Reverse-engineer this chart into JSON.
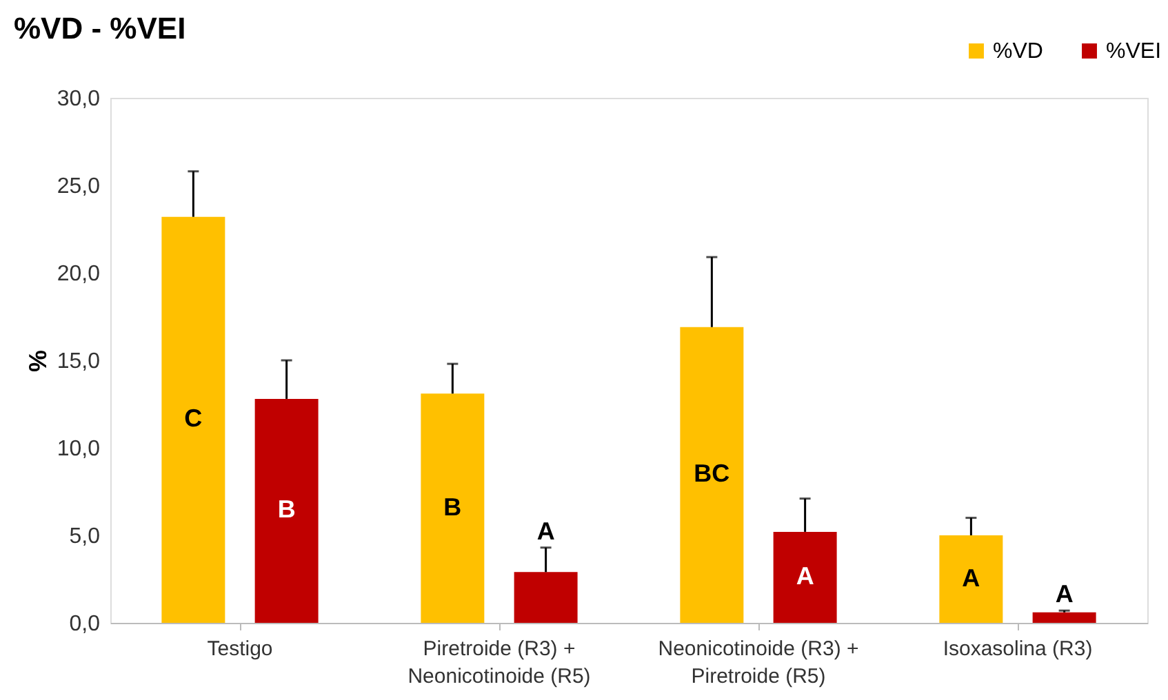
{
  "chart_data": {
    "type": "bar",
    "title": "%VD - %VEI",
    "ylabel": "%",
    "categories": [
      "Testigo",
      "Piretroide (R3) +\nNeonicotinoide (R5)",
      "Neonicotinoide (R3) +\nPiretroide (R5)",
      "Isoxasolina (R3)"
    ],
    "series": [
      {
        "name": "%VD",
        "color": "#ffc000",
        "values": [
          23.2,
          13.1,
          16.9,
          5.0
        ],
        "errors": [
          [
            23.2,
            25.8
          ],
          [
            13.1,
            14.8
          ],
          [
            16.9,
            20.9
          ],
          [
            5.0,
            6.0
          ]
        ],
        "value_labels": [
          "C",
          "B",
          "BC",
          "A"
        ]
      },
      {
        "name": "%VEI",
        "color": "#c00000",
        "values": [
          12.8,
          2.9,
          5.2,
          0.6
        ],
        "errors": [
          [
            12.8,
            15.0
          ],
          [
            2.9,
            4.3
          ],
          [
            5.2,
            7.1
          ],
          [
            0.6,
            0.7
          ]
        ],
        "value_labels": [
          "B",
          "A",
          "A",
          "A"
        ]
      }
    ],
    "ylim": [
      0,
      30
    ],
    "yticks": [
      {
        "value": 0,
        "label": "0,0"
      },
      {
        "value": 5,
        "label": "5,0"
      },
      {
        "value": 10,
        "label": "10,0"
      },
      {
        "value": 15,
        "label": "15,0"
      },
      {
        "value": 20,
        "label": "20,0"
      },
      {
        "value": 25,
        "label": "25,0"
      },
      {
        "value": 30,
        "label": "30,0"
      }
    ],
    "grid": false,
    "legend": "top right"
  }
}
